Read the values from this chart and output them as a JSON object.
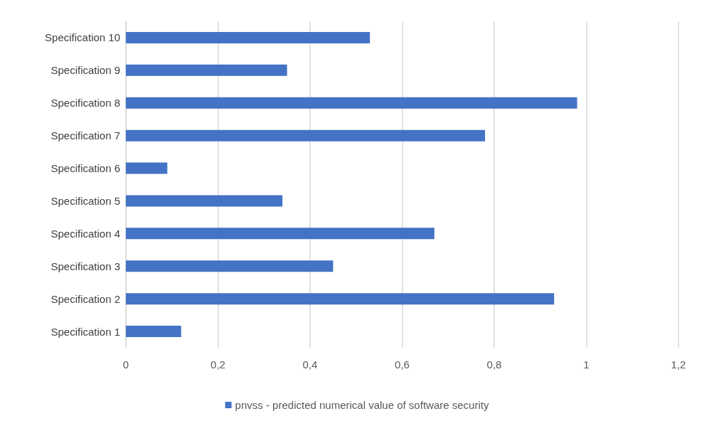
{
  "chart_data": {
    "type": "bar",
    "orientation": "horizontal",
    "categories": [
      "Specification 10",
      "Specification 9",
      "Specification 8",
      "Specification 7",
      "Specification 6",
      "Specification 5",
      "Specification 4",
      "Specification 3",
      "Specification 2",
      "Specification 1"
    ],
    "series": [
      {
        "name": "pnvss - predicted numerical value of software security",
        "color": "#4472c4",
        "values": [
          0.53,
          0.35,
          0.98,
          0.78,
          0.09,
          0.34,
          0.67,
          0.45,
          0.93,
          0.12
        ]
      }
    ],
    "xlim": [
      0,
      1.2
    ],
    "xticks": [
      0,
      {
        "value": 0.2,
        "label": "0,2"
      },
      {
        "value": 0.4,
        "label": "0,4"
      },
      {
        "value": 0.6,
        "label": "0,6"
      },
      {
        "value": 0.8,
        "label": "0,8"
      },
      1,
      {
        "value": 1.2,
        "label": "1,2"
      }
    ],
    "grid": "x",
    "legend": "bottom"
  }
}
